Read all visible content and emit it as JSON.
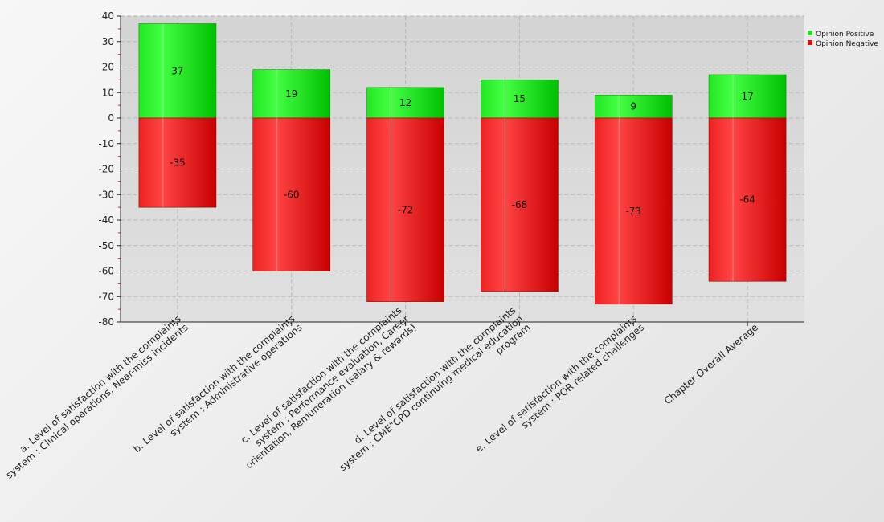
{
  "chart_data": {
    "type": "bar",
    "stacked": true,
    "categories": [
      [
        "a. Level of satisfaction with the complaints",
        "system : Clinical operations, Near-miss incidents"
      ],
      [
        "b. Level of satisfaction with the complaints",
        "system : Administrative operations"
      ],
      [
        "c. Level of satisfaction with the complaints",
        "system : Performance evaluation, Career",
        "orientation, Remuneration (salary & rewards)"
      ],
      [
        "d. Level of satisfaction with the complaints",
        "system : CME\"CPD continuing medical education",
        "program"
      ],
      [
        "e. Level of satisfaction with the complaints",
        "system : PQR related challenges"
      ],
      [
        "Chapter Overall Average"
      ]
    ],
    "series": [
      {
        "name": "Opinion Positive",
        "values": [
          37,
          19,
          12,
          15,
          9,
          17
        ]
      },
      {
        "name": "Opinion Negative",
        "values": [
          -35,
          -60,
          -72,
          -68,
          -73,
          -64
        ]
      }
    ],
    "ylim": [
      -80,
      40
    ],
    "yticks": [
      40,
      30,
      20,
      10,
      0,
      -10,
      -20,
      -30,
      -40,
      -50,
      -60,
      -70,
      -80
    ],
    "grid": true,
    "legend_position": "top-right",
    "colors": {
      "positive_light": "#44ff44",
      "positive_dark": "#00c400",
      "negative_light": "#ff4444",
      "negative_dark": "#cc0000",
      "plot_bg": "#d9d9d9",
      "grid": "#b8b8b8",
      "axis": "#222222"
    }
  }
}
